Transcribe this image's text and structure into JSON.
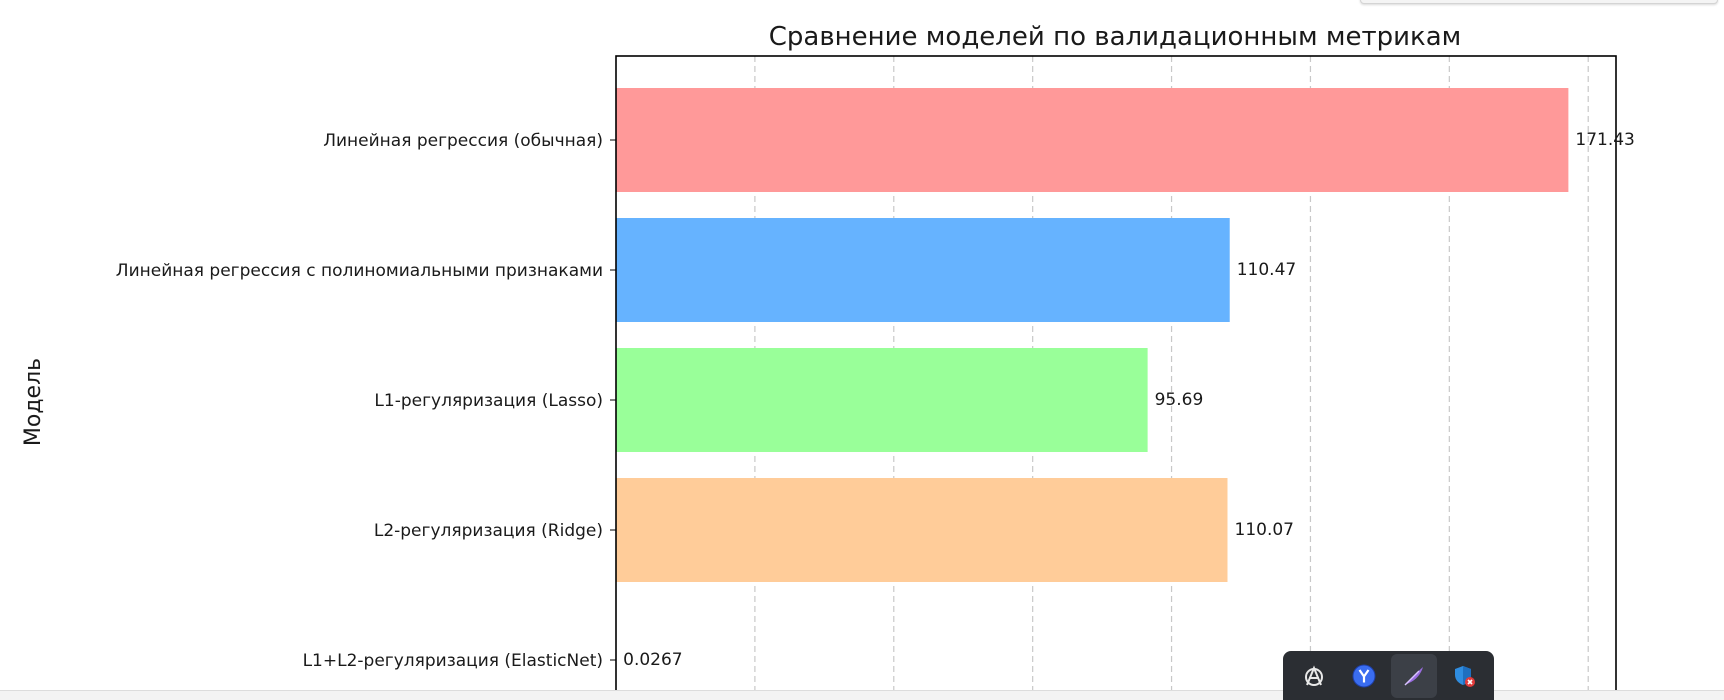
{
  "chart_data": {
    "type": "bar",
    "orientation": "horizontal",
    "title": "Сравнение моделей по валидационным метрикам",
    "xlabel": "",
    "ylabel": "Модель",
    "categories": [
      "Линейная регрессия (обычная)",
      "Линейная регрессия с полиномиальными признаками",
      "L1-регуляризация (Lasso)",
      "L2-регуляризация (Ridge)",
      "L1+L2-регуляризация (ElasticNet)"
    ],
    "values": [
      171.43,
      110.47,
      95.69,
      110.07,
      0.0267
    ],
    "value_labels": [
      "171.43",
      "110.47",
      "95.69",
      "110.07",
      "0.0267"
    ],
    "colors": [
      "#ff9999",
      "#66b3ff",
      "#99ff99",
      "#ffcc99",
      "#c2c2f0"
    ],
    "xlim": [
      0,
      180
    ],
    "grid_x": [
      25,
      50,
      75,
      100,
      125,
      150,
      175
    ],
    "grid": "x-dashed"
  },
  "taskbar": {
    "icons": [
      {
        "name": "anarchy-app-icon",
        "active": false
      },
      {
        "name": "yandex-browser-icon",
        "active": false
      },
      {
        "name": "feather-app-icon",
        "active": true
      },
      {
        "name": "shield-error-icon",
        "active": false
      }
    ]
  }
}
